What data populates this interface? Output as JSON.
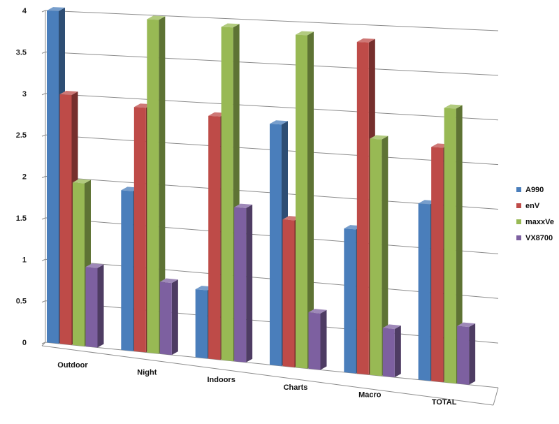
{
  "chart_data": {
    "type": "bar",
    "title": "",
    "xlabel": "",
    "ylabel": "",
    "ylim": [
      0,
      4
    ],
    "yticks": [
      "0",
      "0.5",
      "1",
      "1.5",
      "2",
      "2.5",
      "3",
      "3.5",
      "4"
    ],
    "grid": true,
    "legend_position": "right",
    "categories": [
      "Outdoor",
      "Night",
      "Indoors",
      "Charts",
      "Macro",
      "TOTAL"
    ],
    "series": [
      {
        "name": "A990",
        "color": "#4a7ebb",
        "values": [
          4.0,
          1.9,
          0.8,
          2.8,
          1.65,
          2.0
        ]
      },
      {
        "name": "enV",
        "color": "#be4b48",
        "values": [
          3.0,
          2.9,
          2.85,
          1.7,
          3.8,
          2.65
        ]
      },
      {
        "name": "maxxVe",
        "color": "#98b954",
        "values": [
          1.95,
          3.95,
          3.9,
          3.85,
          2.7,
          3.1
        ]
      },
      {
        "name": "VX8700",
        "color": "#7d60a0",
        "values": [
          0.95,
          0.85,
          1.8,
          0.65,
          0.55,
          0.65
        ]
      }
    ]
  }
}
